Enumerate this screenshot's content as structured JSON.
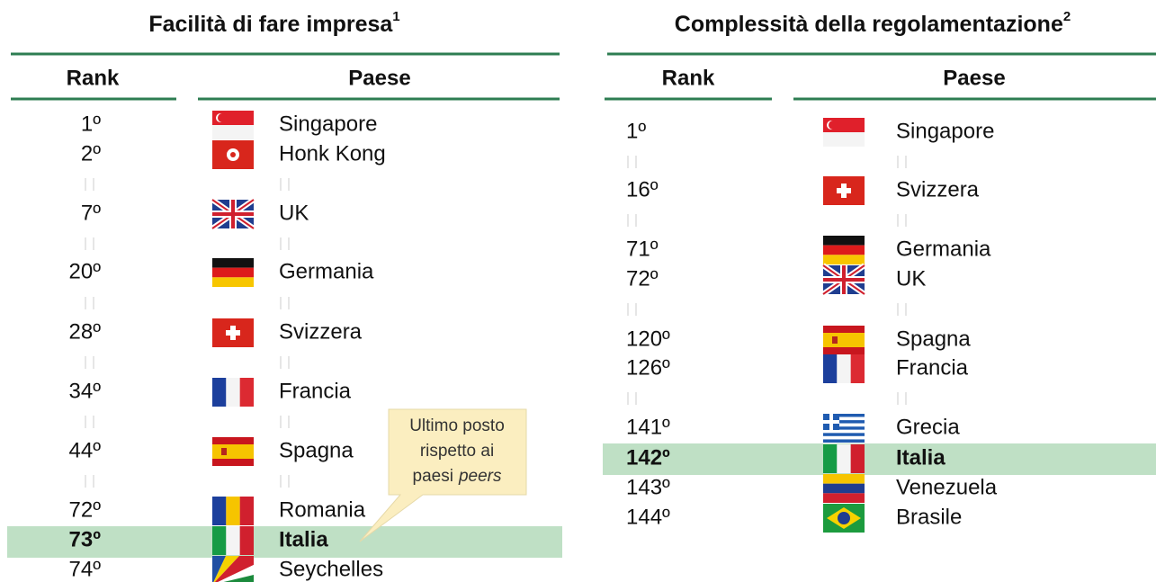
{
  "left": {
    "title": "Facilità di fare impresa",
    "note": "1",
    "headers": [
      "Rank",
      "Paese"
    ],
    "rows": [
      [
        "1º",
        "Singapore"
      ],
      [
        "2º",
        "Honk Kong"
      ],
      [
        "7º",
        "UK"
      ],
      [
        "20º",
        "Germania"
      ],
      [
        "28º",
        "Svizzera"
      ],
      [
        "34º",
        "Francia"
      ],
      [
        "44º",
        "Spagna"
      ],
      [
        "72º",
        "Romania"
      ],
      [
        "73º",
        "Italia"
      ],
      [
        "74º",
        "Seychelles"
      ]
    ]
  },
  "right": {
    "title": "Complessità della regolamentazione",
    "note": "2",
    "headers": [
      "Rank",
      "Paese"
    ],
    "rows": [
      [
        "1º",
        "Singapore"
      ],
      [
        "16º",
        "Svizzera"
      ],
      [
        "71º",
        "Germania"
      ],
      [
        "72º",
        "UK"
      ],
      [
        "120º",
        "Spagna"
      ],
      [
        "126º",
        "Francia"
      ],
      [
        "141º",
        "Grecia"
      ],
      [
        "142º",
        "Italia"
      ],
      [
        "143º",
        "Venezuela"
      ],
      [
        "144º",
        "Brasile"
      ]
    ]
  },
  "callout": {
    "lines": [
      "Ultimo posto",
      "rispetto ai",
      "paesi"
    ],
    "italic": "peers"
  }
}
